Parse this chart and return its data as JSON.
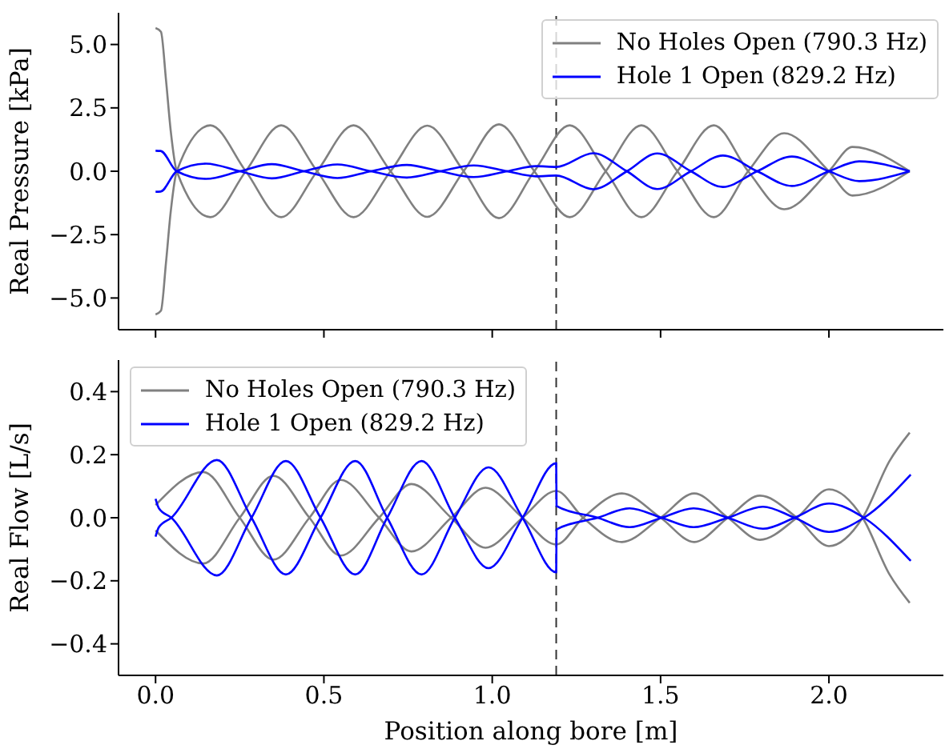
{
  "chart_data": [
    {
      "type": "line",
      "ylabel": "Real Pressure [kPa]",
      "xlim": [
        -0.11,
        2.34
      ],
      "ylim": [
        -6.25,
        6.25
      ],
      "xticks": [
        {
          "value": 0,
          "label": null
        },
        {
          "value": 0.5,
          "label": null
        },
        {
          "value": 1,
          "label": null
        },
        {
          "value": 1.5,
          "label": null
        },
        {
          "value": 2,
          "label": null
        }
      ],
      "yticks": [
        {
          "value": -5,
          "label": "−5.0"
        },
        {
          "value": -2.5,
          "label": "−2.5"
        },
        {
          "value": 0,
          "label": "0.0"
        },
        {
          "value": 2.5,
          "label": "2.5"
        },
        {
          "value": 5,
          "label": "5.0"
        }
      ],
      "tick_labels": "y",
      "legend": "top right",
      "grid": false,
      "line_style": "solid",
      "ref_lines": [
        {
          "axis": "x",
          "value": 1.19,
          "color": "#333333",
          "line_style": "dashed"
        }
      ],
      "series": [
        {
          "name": "No Holes Open (790.3 Hz)",
          "color": "#808080",
          "x": [
            0,
            0.016,
            0.031,
            0.045,
            0.063,
            0.163,
            0.268,
            0.373,
            0.48,
            0.588,
            0.698,
            0.807,
            0.915,
            1.02,
            1.125,
            1.23,
            1.337,
            1.443,
            1.55,
            1.658,
            1.76,
            1.867,
            2.0,
            2.07,
            2.24
          ],
          "values": [
            5.65,
            5.5,
            3.6,
            1.6,
            0,
            -1.81,
            0,
            1.81,
            0,
            -1.81,
            0,
            1.8,
            0,
            -1.85,
            0,
            1.81,
            0,
            -1.81,
            0,
            1.81,
            0,
            -1.5,
            0,
            0.96,
            0
          ]
        },
        {
          "color": "#808080",
          "x": [
            0,
            0.016,
            0.031,
            0.045,
            0.063,
            0.163,
            0.268,
            0.373,
            0.48,
            0.588,
            0.698,
            0.807,
            0.915,
            1.02,
            1.125,
            1.23,
            1.337,
            1.443,
            1.55,
            1.658,
            1.76,
            1.867,
            2.0,
            2.07,
            2.24
          ],
          "values": [
            -5.65,
            -5.5,
            -3.6,
            -1.6,
            0,
            1.81,
            0,
            -1.81,
            0,
            1.81,
            0,
            -1.8,
            0,
            1.85,
            0,
            -1.81,
            0,
            1.81,
            0,
            -1.81,
            0,
            1.5,
            0,
            -0.96,
            0
          ]
        },
        {
          "name": "Hole 1 Open (829.2 Hz)",
          "color": "#0000ff",
          "x": [
            0,
            0.015,
            0.063,
            0.15,
            0.25,
            0.345,
            0.44,
            0.54,
            0.64,
            0.745,
            0.846,
            0.945,
            1.044,
            1.13,
            1.19,
            1.3,
            1.4,
            1.49,
            1.59,
            1.685,
            1.787,
            1.89,
            2.0,
            2.09,
            2.24
          ],
          "values": [
            0.81,
            0.8,
            0,
            -0.3,
            0,
            0.28,
            0,
            -0.27,
            0,
            0.25,
            0,
            -0.23,
            0,
            0.2,
            0.17,
            0.71,
            0,
            -0.7,
            0,
            0.62,
            0,
            -0.58,
            0,
            0.39,
            0
          ]
        },
        {
          "color": "#0000ff",
          "x": [
            0,
            0.015,
            0.063,
            0.15,
            0.25,
            0.345,
            0.44,
            0.54,
            0.64,
            0.745,
            0.846,
            0.945,
            1.044,
            1.13,
            1.19,
            1.3,
            1.4,
            1.49,
            1.59,
            1.685,
            1.787,
            1.89,
            2.0,
            2.09,
            2.24
          ],
          "values": [
            -0.81,
            -0.8,
            0,
            0.3,
            0,
            -0.28,
            0,
            0.27,
            0,
            -0.25,
            0,
            0.23,
            0,
            -0.2,
            -0.17,
            -0.71,
            0,
            0.7,
            0,
            -0.62,
            0,
            0.58,
            0,
            -0.39,
            0
          ]
        }
      ]
    },
    {
      "type": "line",
      "xlabel": "Position along bore [m]",
      "ylabel": "Real Flow [L/s]",
      "xlim": [
        -0.11,
        2.34
      ],
      "ylim": [
        -0.5,
        0.5
      ],
      "xticks": [
        {
          "value": 0,
          "label": "0.0"
        },
        {
          "value": 0.5,
          "label": "0.5"
        },
        {
          "value": 1,
          "label": "1.0"
        },
        {
          "value": 1.5,
          "label": "1.5"
        },
        {
          "value": 2,
          "label": "2.0"
        }
      ],
      "yticks": [
        {
          "value": -0.4,
          "label": "−0.4"
        },
        {
          "value": -0.2,
          "label": "−0.2"
        },
        {
          "value": 0,
          "label": "0.0"
        },
        {
          "value": 0.2,
          "label": "0.2"
        },
        {
          "value": 0.4,
          "label": "0.4"
        }
      ],
      "legend": "top left",
      "grid": false,
      "line_style": "solid",
      "ref_lines": [
        {
          "axis": "x",
          "value": 1.19,
          "color": "#333333",
          "line_style": "dashed"
        }
      ],
      "series": [
        {
          "name": "No Holes Open (790.3 Hz)",
          "color": "#808080",
          "x": [
            0,
            0.142,
            0.25,
            0.35,
            0.457,
            0.55,
            0.664,
            0.76,
            0.878,
            0.98,
            1.09,
            1.19,
            1.27,
            1.385,
            1.5,
            1.6,
            1.7,
            1.795,
            1.905,
            2.0,
            2.1,
            2.18,
            2.24
          ],
          "values": [
            0.04,
            0.145,
            0,
            -0.133,
            0,
            0.12,
            0,
            -0.107,
            0,
            0.095,
            0,
            -0.085,
            0,
            0.077,
            0,
            -0.077,
            0,
            0.07,
            0,
            -0.09,
            0,
            0.18,
            0.27
          ]
        },
        {
          "color": "#808080",
          "x": [
            0,
            0.142,
            0.25,
            0.35,
            0.457,
            0.55,
            0.664,
            0.76,
            0.878,
            0.98,
            1.09,
            1.19,
            1.27,
            1.385,
            1.5,
            1.6,
            1.7,
            1.795,
            1.905,
            2.0,
            2.1,
            2.18,
            2.24
          ],
          "values": [
            -0.04,
            -0.145,
            0,
            0.133,
            0,
            -0.12,
            0,
            0.107,
            0,
            -0.095,
            0,
            0.085,
            0,
            -0.077,
            0,
            0.077,
            0,
            -0.07,
            0,
            0.09,
            0,
            -0.18,
            -0.27
          ]
        },
        {
          "name": "Hole 1 Open (829.2 Hz)",
          "color": "#0000ff",
          "x": [
            0,
            0.01,
            0.047,
            0.182,
            0.285,
            0.387,
            0.49,
            0.593,
            0.688,
            0.79,
            0.889,
            0.989,
            1.09,
            1.19,
            1.191,
            1.313,
            1.408,
            1.503,
            1.598,
            1.7,
            1.804,
            1.898,
            2.0,
            2.104,
            2.243
          ],
          "values": [
            0.06,
            0.03,
            0,
            -0.183,
            0,
            0.18,
            0,
            -0.18,
            0,
            0.18,
            0,
            -0.16,
            0,
            0.173,
            0.037,
            0,
            -0.03,
            0,
            0.03,
            0,
            -0.035,
            0,
            0.045,
            0,
            -0.137
          ]
        },
        {
          "color": "#0000ff",
          "x": [
            0,
            0.01,
            0.047,
            0.182,
            0.285,
            0.387,
            0.49,
            0.593,
            0.688,
            0.79,
            0.889,
            0.989,
            1.09,
            1.19,
            1.191,
            1.313,
            1.408,
            1.503,
            1.598,
            1.7,
            1.804,
            1.898,
            2.0,
            2.104,
            2.243
          ],
          "values": [
            -0.06,
            -0.03,
            0,
            0.183,
            0,
            -0.18,
            0,
            0.18,
            0,
            -0.18,
            0,
            0.16,
            0,
            -0.173,
            -0.037,
            0,
            0.03,
            0,
            -0.03,
            0,
            0.035,
            0,
            -0.045,
            0,
            0.137
          ]
        }
      ]
    }
  ]
}
